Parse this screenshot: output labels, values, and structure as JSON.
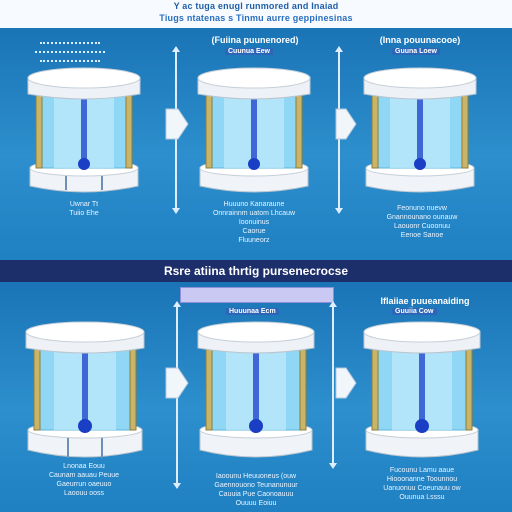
{
  "header": {
    "line1": "Y  ac  tuga  enugl  runmored  and  Inaiad",
    "line2": "Tiugs  ntatenas  s  Tinmu  aurre  geppinesinas"
  },
  "top_row": {
    "center_label": "(Fuiina  puunenored)",
    "center_tag": "Cuunua  Eew",
    "right_label": "(Inna  pouunacooe)",
    "right_tag": "Guuna  Loew",
    "captions": [
      [
        "Uwnar  Tt",
        "Tuiio  Ehe"
      ],
      [
        "Huuuno  Kanaraune",
        "Onnrainnm  uatom  Lhcauw",
        "Ioonuinus",
        "Caorue",
        "Fluuneorz"
      ],
      [
        "Feonuno  nuevw",
        "Gnannounano  ounauw",
        "Laouonr  Cuoonuu",
        "Eenoe  Sanoe"
      ]
    ]
  },
  "divider": {
    "text": "Rsre  atiina  thrtig  pursenecrocse"
  },
  "bottom_row": {
    "right_label": "Iflaiiae  puueanaiding",
    "right_tag": "Guuiia  Cow",
    "center_tag": "Huuunaa  Ecm",
    "captions": [
      [
        "Lnonaa  Eouu",
        "Caunam  aauau  Peuue",
        "Gaeurrun  oaeuuo",
        "Laoouu  ooss"
      ],
      [
        "Iaoounu  Heuuoneus  (ouw",
        "Gaennouono  Teunanunuur",
        "Cauuia  Pue  Caonoauuu",
        "Ouuuu  Eoiuu"
      ],
      [
        "Fucounu  Lamu  aaue",
        "Hiooonanne  Toounnou",
        "Uanuonuu  Coeunauu  ow",
        "Ouunua  Lsssu"
      ]
    ]
  },
  "colors": {
    "background": "#1f7fbd",
    "divider": "#1d2f6b",
    "cylinder_glass": "#8ed8f4",
    "post_gold": "#c9b56a",
    "valve_blue": "#1b3fc4",
    "cap_white": "#f4f6f8"
  }
}
